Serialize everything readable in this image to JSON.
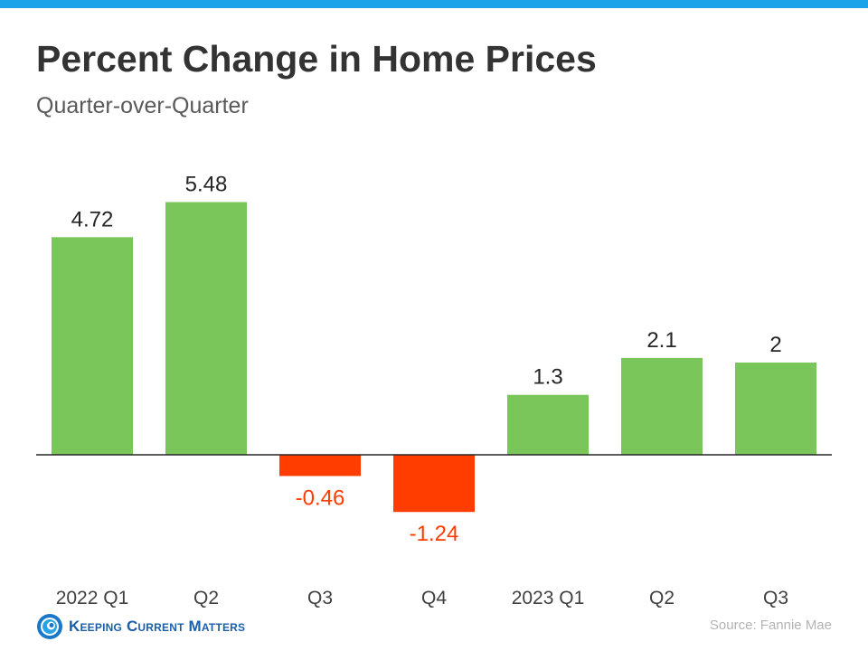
{
  "title": "Percent Change in Home Prices",
  "subtitle": "Quarter-over-Quarter",
  "source": "Source: Fannie Mae",
  "brand": {
    "name": "Keeping Current Matters",
    "logo_icon": "kcm-spiral-logo-icon",
    "color": "#1b5fa8"
  },
  "colors": {
    "accent_bar": "#1aa3e8",
    "positive": "#7bc65a",
    "negative": "#ff3d00",
    "label_positive": "#262626",
    "label_negative": "#ff3d00",
    "axis": "#262626",
    "tick": "#404040"
  },
  "chart_data": {
    "type": "bar",
    "title": "Percent Change in Home Prices",
    "subtitle": "Quarter-over-Quarter",
    "xlabel": "",
    "ylabel": "",
    "categories": [
      "2022 Q1",
      "Q2",
      "Q3",
      "Q4",
      "2023 Q1",
      "Q2",
      "Q3"
    ],
    "values": [
      4.72,
      5.48,
      -0.46,
      -1.24,
      1.3,
      2.1,
      2
    ],
    "data_labels": [
      "4.72",
      "5.48",
      "-0.46",
      "-1.24",
      "1.3",
      "2.1",
      "2"
    ],
    "ylim": [
      -1.24,
      5.48
    ],
    "grid": false,
    "legend": "none"
  }
}
